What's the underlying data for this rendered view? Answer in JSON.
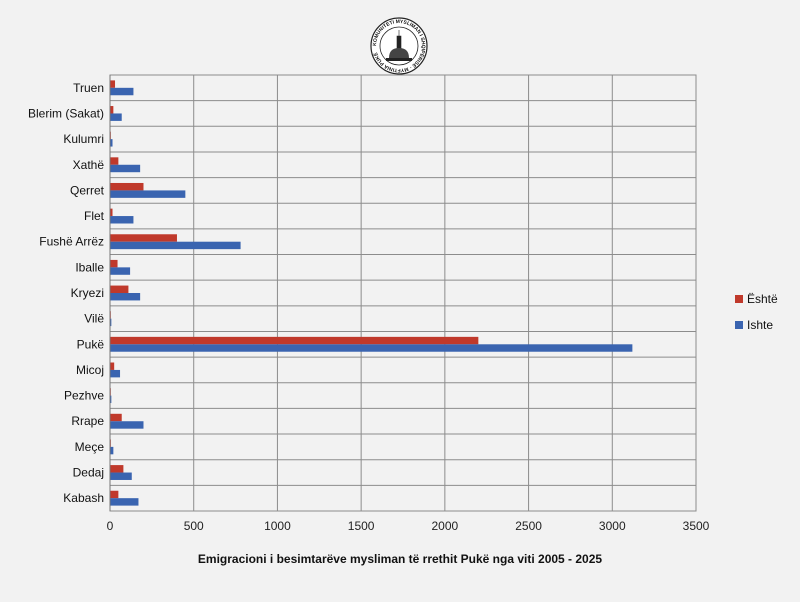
{
  "logo": {
    "name": "seal-logo",
    "text": "KOMUNITETI MYSLIMAN I SHQIPËRISË MYFTINIA PUKË"
  },
  "chart_data": {
    "type": "bar",
    "orientation": "horizontal",
    "title": "",
    "xlabel": "Emigracioni i besimtarëve mysliman të rrethit  Pukë nga viti 2005 - 2025",
    "ylabel": "",
    "xlim": [
      0,
      3500
    ],
    "xticks": [
      0,
      500,
      1000,
      1500,
      2000,
      2500,
      3000,
      3500
    ],
    "grid": true,
    "legend_position": "right",
    "categories": [
      "Truen",
      "Blerim (Sakat)",
      "Kulumri",
      "Xathë",
      "Qerret",
      "Flet",
      "Fushë Arrëz",
      "Iballe",
      "Kryezi",
      "Vilë",
      "Pukë",
      "Micoj",
      "Pezhve",
      "Rrape",
      "Meçe",
      "Dedaj",
      "Kabash"
    ],
    "series": [
      {
        "name": "Është",
        "color": "#c0392b",
        "values": [
          30,
          20,
          5,
          50,
          200,
          15,
          400,
          45,
          110,
          3,
          2200,
          25,
          3,
          70,
          5,
          80,
          50
        ]
      },
      {
        "name": "Ishte",
        "color": "#3a64b0",
        "values": [
          140,
          70,
          15,
          180,
          450,
          140,
          780,
          120,
          180,
          8,
          3120,
          60,
          8,
          200,
          20,
          130,
          170
        ]
      }
    ]
  }
}
